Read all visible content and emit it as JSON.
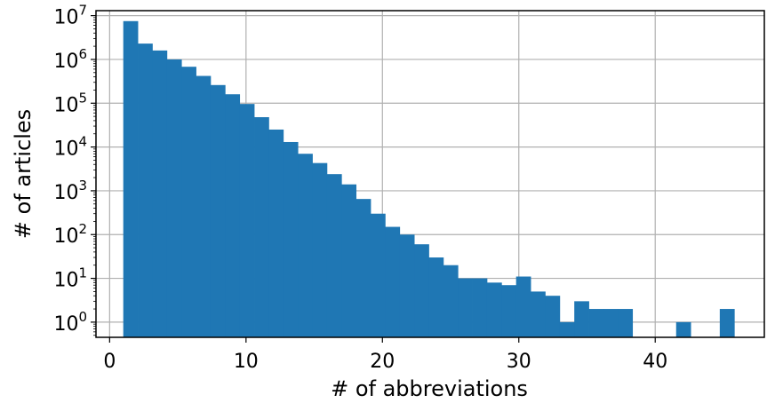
{
  "chart_data": {
    "type": "bar",
    "scale_y": "log",
    "grid": true,
    "bar_color": "#1f77b4",
    "xlabel": "# of abbreviations",
    "ylabel": "# of articles",
    "xlim": [
      -1,
      48
    ],
    "ylim": [
      0.45,
      13000000
    ],
    "x_ticks": [
      0,
      10,
      20,
      30,
      40
    ],
    "x_tick_labels": [
      "0",
      "10",
      "20",
      "30",
      "40"
    ],
    "y_ticks": [
      1,
      10,
      100,
      1000,
      10000,
      100000,
      1000000,
      10000000
    ],
    "y_tick_labels": [
      {
        "base": "10",
        "exp": "0"
      },
      {
        "base": "10",
        "exp": "1"
      },
      {
        "base": "10",
        "exp": "2"
      },
      {
        "base": "10",
        "exp": "3"
      },
      {
        "base": "10",
        "exp": "4"
      },
      {
        "base": "10",
        "exp": "5"
      },
      {
        "base": "10",
        "exp": "6"
      },
      {
        "base": "10",
        "exp": "7"
      }
    ],
    "bin_edges": [
      1.0,
      2.0667,
      3.1333,
      4.2,
      5.2667,
      6.3333,
      7.4,
      8.4667,
      9.5333,
      10.6,
      11.6667,
      12.7333,
      13.8,
      14.8667,
      15.9333,
      17.0,
      18.0667,
      19.1333,
      20.2,
      21.2667,
      22.3333,
      23.4,
      24.4667,
      25.5333,
      26.6,
      27.6667,
      28.7333,
      29.8,
      30.8667,
      31.9333,
      33.0,
      34.0667,
      35.1333,
      36.2,
      37.2667,
      38.3333,
      39.4,
      40.4667,
      41.5333,
      42.6,
      43.6667,
      44.7333,
      45.8
    ],
    "values": [
      7500000,
      2300000,
      1600000,
      1000000,
      680000,
      420000,
      260000,
      160000,
      96000,
      48000,
      25000,
      13000,
      7000,
      4300,
      2400,
      1400,
      650,
      300,
      150,
      100,
      60,
      30,
      20,
      10,
      10,
      8,
      7,
      11,
      5,
      4,
      1,
      3,
      2,
      2,
      2,
      0,
      0,
      0,
      1,
      0,
      0,
      2
    ]
  }
}
